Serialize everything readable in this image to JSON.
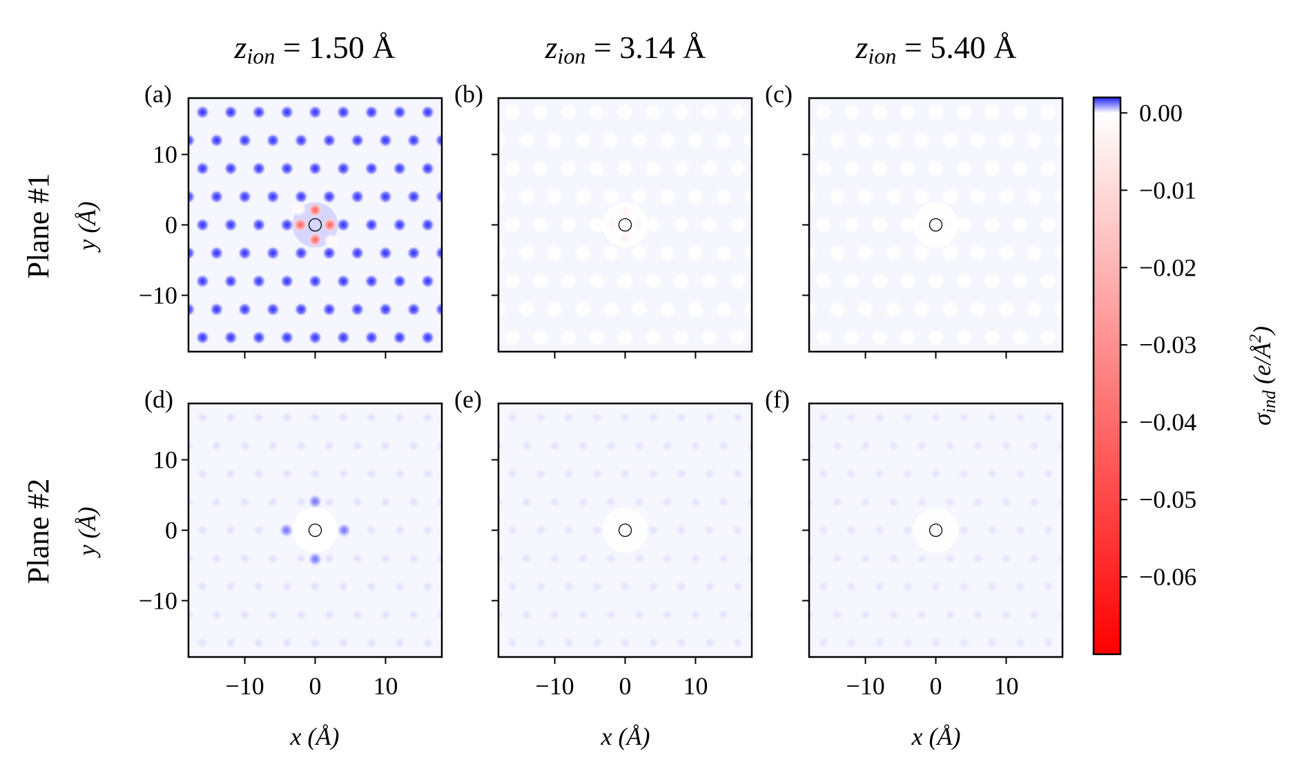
{
  "chart_data": {
    "type": "heatmap",
    "title": "",
    "column_titles": [
      {
        "base": "z",
        "sub": "ion",
        "rest": " = 1.50 Å"
      },
      {
        "base": "z",
        "sub": "ion",
        "rest": " = 3.14 Å"
      },
      {
        "base": "z",
        "sub": "ion",
        "rest": " = 5.40 Å"
      }
    ],
    "row_titles": [
      "Plane #1",
      "Plane #2"
    ],
    "xlabel": "x (Å)",
    "ylabel": "y (Å)",
    "xlim": [
      -18,
      18
    ],
    "ylim": [
      -18,
      18
    ],
    "xticks": [
      -10,
      0,
      10
    ],
    "yticks": [
      -10,
      0,
      10
    ],
    "xtick_labels": [
      "−10",
      "0",
      "10"
    ],
    "ytick_labels": [
      "−10",
      "0",
      "10"
    ],
    "lattice_spacing_angstrom": 4.0,
    "ion_position": [
      0,
      0
    ],
    "colorbar": {
      "label": "σind (e/Å²)",
      "label_parts": {
        "sym": "σ",
        "sub": "ind",
        "unit": " (e/Å",
        "sup": "2",
        "close": ")"
      },
      "range": [
        -0.07,
        0.002
      ],
      "ticks": [
        0.0,
        -0.01,
        -0.02,
        -0.03,
        -0.04,
        -0.05,
        -0.06
      ],
      "tick_labels": [
        "0.00",
        "−0.01",
        "−0.02",
        "−0.03",
        "−0.04",
        "−0.05",
        "−0.06"
      ],
      "colors": {
        "positive": "#1f1fff",
        "zero": "#ffffff",
        "negative": "#ff0000"
      }
    },
    "panels": [
      {
        "label": "(a)",
        "row": 0,
        "col": 0,
        "z_ion": 1.5,
        "lattice_peak": 0.0019,
        "lattice_dot_radius_angstrom": 0.65,
        "ring_value": 0.0004,
        "ion_spots": [
          {
            "x": 0,
            "y": 2.1,
            "v": -0.045
          },
          {
            "x": 0,
            "y": -2.1,
            "v": -0.045
          },
          {
            "x": -2.1,
            "y": 0,
            "v": -0.045
          },
          {
            "x": 2.1,
            "y": 0,
            "v": -0.045
          },
          {
            "x": -2.3,
            "y": 2.3,
            "v": -0.003
          },
          {
            "x": 2.3,
            "y": -2.3,
            "v": -0.003
          }
        ]
      },
      {
        "label": "(b)",
        "row": 0,
        "col": 1,
        "z_ion": 3.14,
        "lattice_peak": 2e-05,
        "lattice_dot_radius_angstrom": 0.9,
        "ring_value": 0.0,
        "ion_spots": [
          {
            "x": 0,
            "y": 1.9,
            "v": -0.004
          },
          {
            "x": 0,
            "y": -1.9,
            "v": -0.004
          },
          {
            "x": -1.9,
            "y": 0,
            "v": -0.003
          },
          {
            "x": 1.9,
            "y": 0,
            "v": -0.003
          }
        ]
      },
      {
        "label": "(c)",
        "row": 0,
        "col": 2,
        "z_ion": 5.4,
        "lattice_peak": 2e-05,
        "lattice_dot_radius_angstrom": 0.9,
        "ring_value": 0.0,
        "ion_spots": [
          {
            "x": -1.5,
            "y": 0,
            "v": -0.0015
          },
          {
            "x": 1.5,
            "y": 0,
            "v": -0.0015
          }
        ]
      },
      {
        "label": "(d)",
        "row": 1,
        "col": 0,
        "z_ion": 1.5,
        "lattice_peak": 0.0003,
        "lattice_dot_radius_angstrom": 0.55,
        "ring_value": 0.0,
        "ion_spots": [
          {
            "x": 0,
            "y": 4.1,
            "v": 0.0013
          },
          {
            "x": 0,
            "y": -4.1,
            "v": 0.0013
          },
          {
            "x": -4.1,
            "y": 0,
            "v": 0.0013
          },
          {
            "x": 4.1,
            "y": 0,
            "v": 0.0013
          },
          {
            "x": 0,
            "y": 0,
            "v": -0.002
          }
        ]
      },
      {
        "label": "(e)",
        "row": 1,
        "col": 1,
        "z_ion": 3.14,
        "lattice_peak": 0.00028,
        "lattice_dot_radius_angstrom": 0.55,
        "ring_value": 0.0,
        "ion_spots": []
      },
      {
        "label": "(f)",
        "row": 1,
        "col": 2,
        "z_ion": 5.4,
        "lattice_peak": 0.00027,
        "lattice_dot_radius_angstrom": 0.55,
        "ring_value": 0.0,
        "ion_spots": []
      }
    ]
  }
}
